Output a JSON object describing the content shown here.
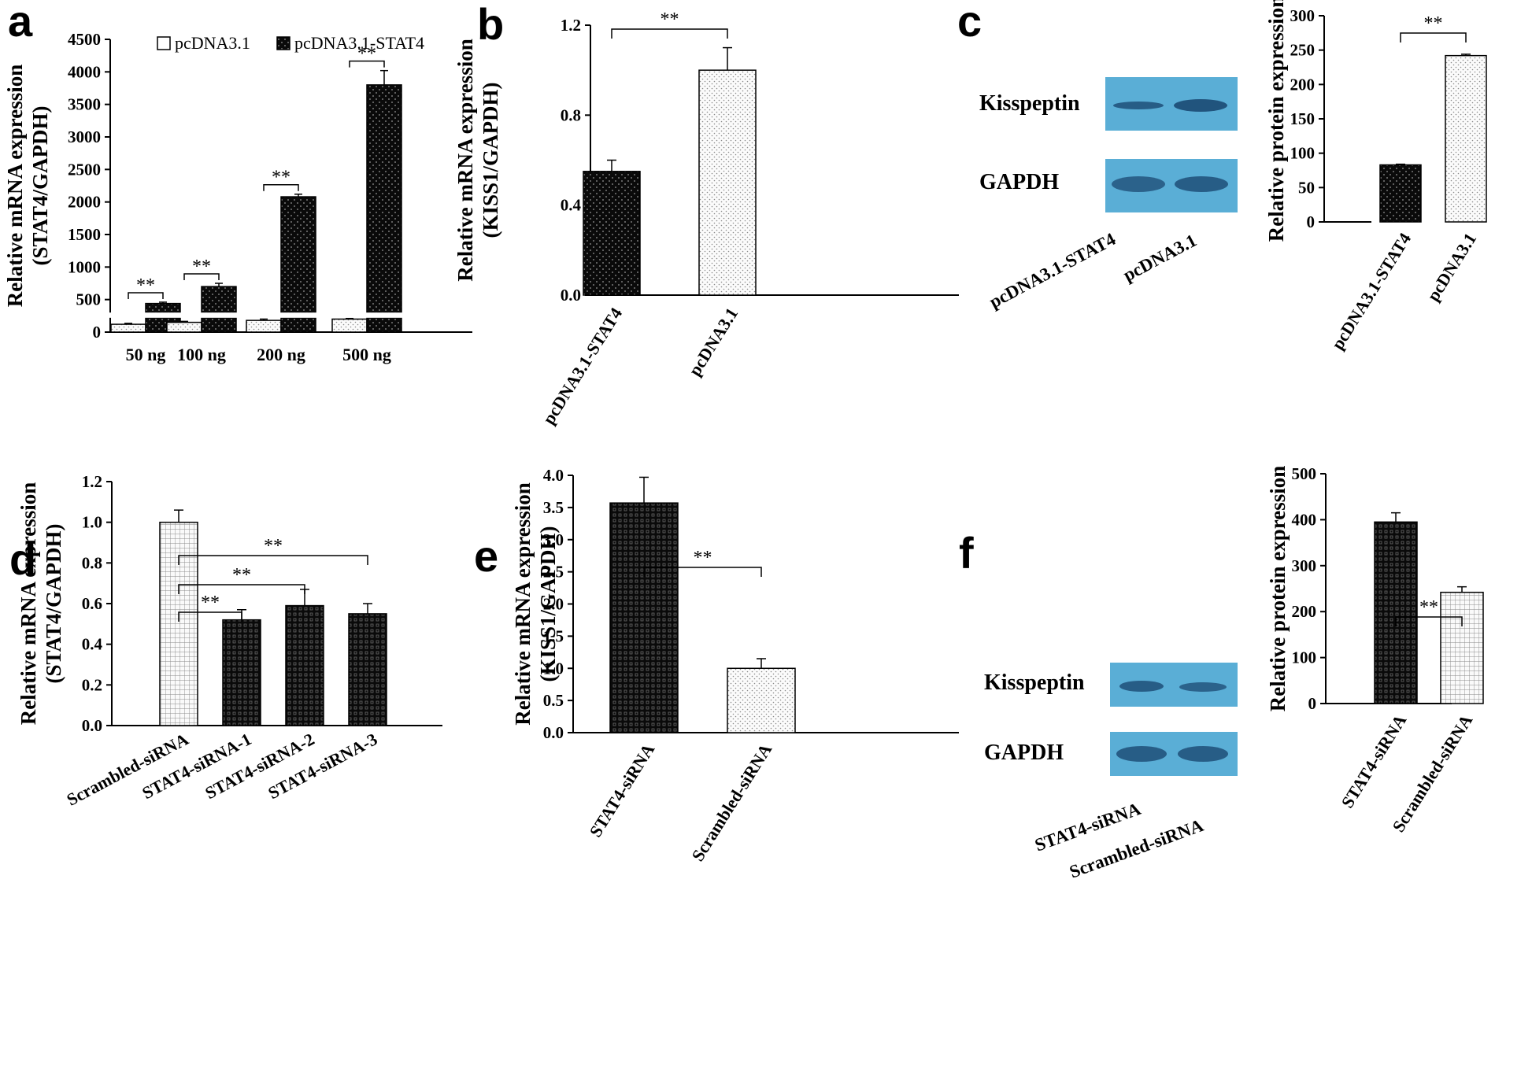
{
  "colors": {
    "dark_bar": "#0a0a0a",
    "light_bar": "#f5f5f5",
    "blot_bg": "#5aaed6",
    "band": "#1f4f78",
    "axis": "#000000"
  },
  "chart_data": [
    {
      "id": "a",
      "letter": "a",
      "type": "bar",
      "ylabel": [
        "Relative mRNA expression",
        "(STAT4/GAPDH)"
      ],
      "ylim": [
        0,
        4500
      ],
      "yticks": [
        "0",
        "500",
        "1000",
        "1500",
        "2000",
        "2500",
        "3000",
        "3500",
        "4000",
        "4500"
      ],
      "ytick_values": [
        0,
        500,
        1000,
        1500,
        2000,
        2500,
        3000,
        3500,
        4000,
        4500
      ],
      "axis_break": [
        220,
        300
      ],
      "categories": [
        "50 ng",
        "100 ng",
        "200 ng",
        "500 ng"
      ],
      "legend": [
        "pcDNA3.1",
        "pcDNA3.1-STAT4"
      ],
      "series": [
        {
          "name": "pcDNA3.1",
          "values": [
            120,
            150,
            180,
            200
          ],
          "errors": [
            15,
            15,
            20,
            10
          ],
          "fill": "light"
        },
        {
          "name": "pcDNA3.1-STAT4",
          "values": [
            440,
            700,
            2080,
            3800
          ],
          "errors": [
            20,
            50,
            40,
            220
          ],
          "fill": "dark"
        }
      ],
      "significance": [
        "**",
        "**",
        "**",
        "**"
      ]
    },
    {
      "id": "b",
      "letter": "b",
      "type": "bar",
      "ylabel": [
        "Relative mRNA expression",
        "(KISS1/GAPDH)"
      ],
      "ylim": [
        0,
        1.2
      ],
      "yticks": [
        "0.0",
        "0.4",
        "0.8",
        "1.2"
      ],
      "ytick_values": [
        0,
        0.4,
        0.8,
        1.2
      ],
      "categories": [
        "pcDNA3.1-STAT4",
        "pcDNA3.1"
      ],
      "values": [
        0.55,
        1.0
      ],
      "errors": [
        0.05,
        0.1
      ],
      "fills": [
        "dark",
        "light"
      ],
      "significance": [
        {
          "from": 0,
          "to": 1,
          "label": "**"
        }
      ]
    },
    {
      "id": "c",
      "letter": "c",
      "type": "bar",
      "ylabel": [
        "Relative protein  expression"
      ],
      "ylim": [
        0,
        300
      ],
      "yticks": [
        "0",
        "50",
        "100",
        "150",
        "200",
        "250",
        "300"
      ],
      "ytick_values": [
        0,
        50,
        100,
        150,
        200,
        250,
        300
      ],
      "categories": [
        "pcDNA3.1-STAT4",
        "pcDNA3.1"
      ],
      "values": [
        83,
        242
      ],
      "errors": [
        1,
        2
      ],
      "fills": [
        "dark",
        "light"
      ],
      "significance": [
        {
          "from": 0,
          "to": 1,
          "label": "**"
        }
      ]
    },
    {
      "id": "d",
      "letter": "d",
      "type": "bar",
      "ylabel": [
        "Relative mRNA expression",
        "(STAT4/GAPDH)"
      ],
      "ylim": [
        0,
        1.2
      ],
      "yticks": [
        "0.0",
        "0.2",
        "0.4",
        "0.6",
        "0.8",
        "1.0",
        "1.2"
      ],
      "ytick_values": [
        0,
        0.2,
        0.4,
        0.6,
        0.8,
        1.0,
        1.2
      ],
      "categories": [
        "Scrambled-siRNA",
        "STAT4-siRNA-1",
        "STAT4-siRNA-2",
        "STAT4-siRNA-3"
      ],
      "values": [
        1.0,
        0.52,
        0.59,
        0.55
      ],
      "errors": [
        0.06,
        0.05,
        0.08,
        0.05
      ],
      "fills": [
        "light-grid",
        "dark-grid",
        "dark-grid",
        "dark-grid"
      ],
      "significance": [
        {
          "from": 0,
          "to": 1,
          "label": "**"
        },
        {
          "from": 0,
          "to": 2,
          "label": "**"
        },
        {
          "from": 0,
          "to": 3,
          "label": "**"
        }
      ]
    },
    {
      "id": "e",
      "letter": "e",
      "type": "bar",
      "ylabel": [
        "Relative mRNA expression",
        "(KISS1/GAPDH)"
      ],
      "ylim": [
        0,
        4.0
      ],
      "yticks": [
        "0.0",
        "0.5",
        "1.0",
        "1.5",
        "2.0",
        "2.5",
        "3.0",
        "3.5",
        "4.0"
      ],
      "ytick_values": [
        0,
        0.5,
        1.0,
        1.5,
        2.0,
        2.5,
        3.0,
        3.5,
        4.0
      ],
      "categories": [
        "STAT4-siRNA",
        "Scrambled-siRNA"
      ],
      "values": [
        3.57,
        1.0
      ],
      "errors": [
        0.4,
        0.15
      ],
      "fills": [
        "dark-grid",
        "light"
      ],
      "significance": [
        {
          "from": 0,
          "to": 1,
          "label": "**"
        }
      ]
    },
    {
      "id": "f",
      "letter": "f",
      "type": "bar",
      "ylabel": [
        "Relative protein  expression"
      ],
      "ylim": [
        0,
        500
      ],
      "yticks": [
        "0",
        "100",
        "200",
        "300",
        "400",
        "500"
      ],
      "ytick_values": [
        0,
        100,
        200,
        300,
        400,
        500
      ],
      "categories": [
        "STAT4-siRNA",
        "Scrambled-siRNA"
      ],
      "values": [
        395,
        242
      ],
      "errors": [
        20,
        12
      ],
      "fills": [
        "dark-grid",
        "light-grid"
      ],
      "significance": [
        {
          "from": 0,
          "to": 1,
          "label": "**"
        }
      ]
    }
  ],
  "blots": [
    {
      "id": "c",
      "rows": [
        "Kisspeptin",
        "GAPDH"
      ],
      "lanes": [
        "pcDNA3.1-STAT4",
        "pcDNA3.1"
      ]
    },
    {
      "id": "f",
      "rows": [
        "Kisspeptin",
        "GAPDH"
      ],
      "lanes": [
        "STAT4-siRNA",
        "Scrambled-siRNA"
      ]
    }
  ]
}
